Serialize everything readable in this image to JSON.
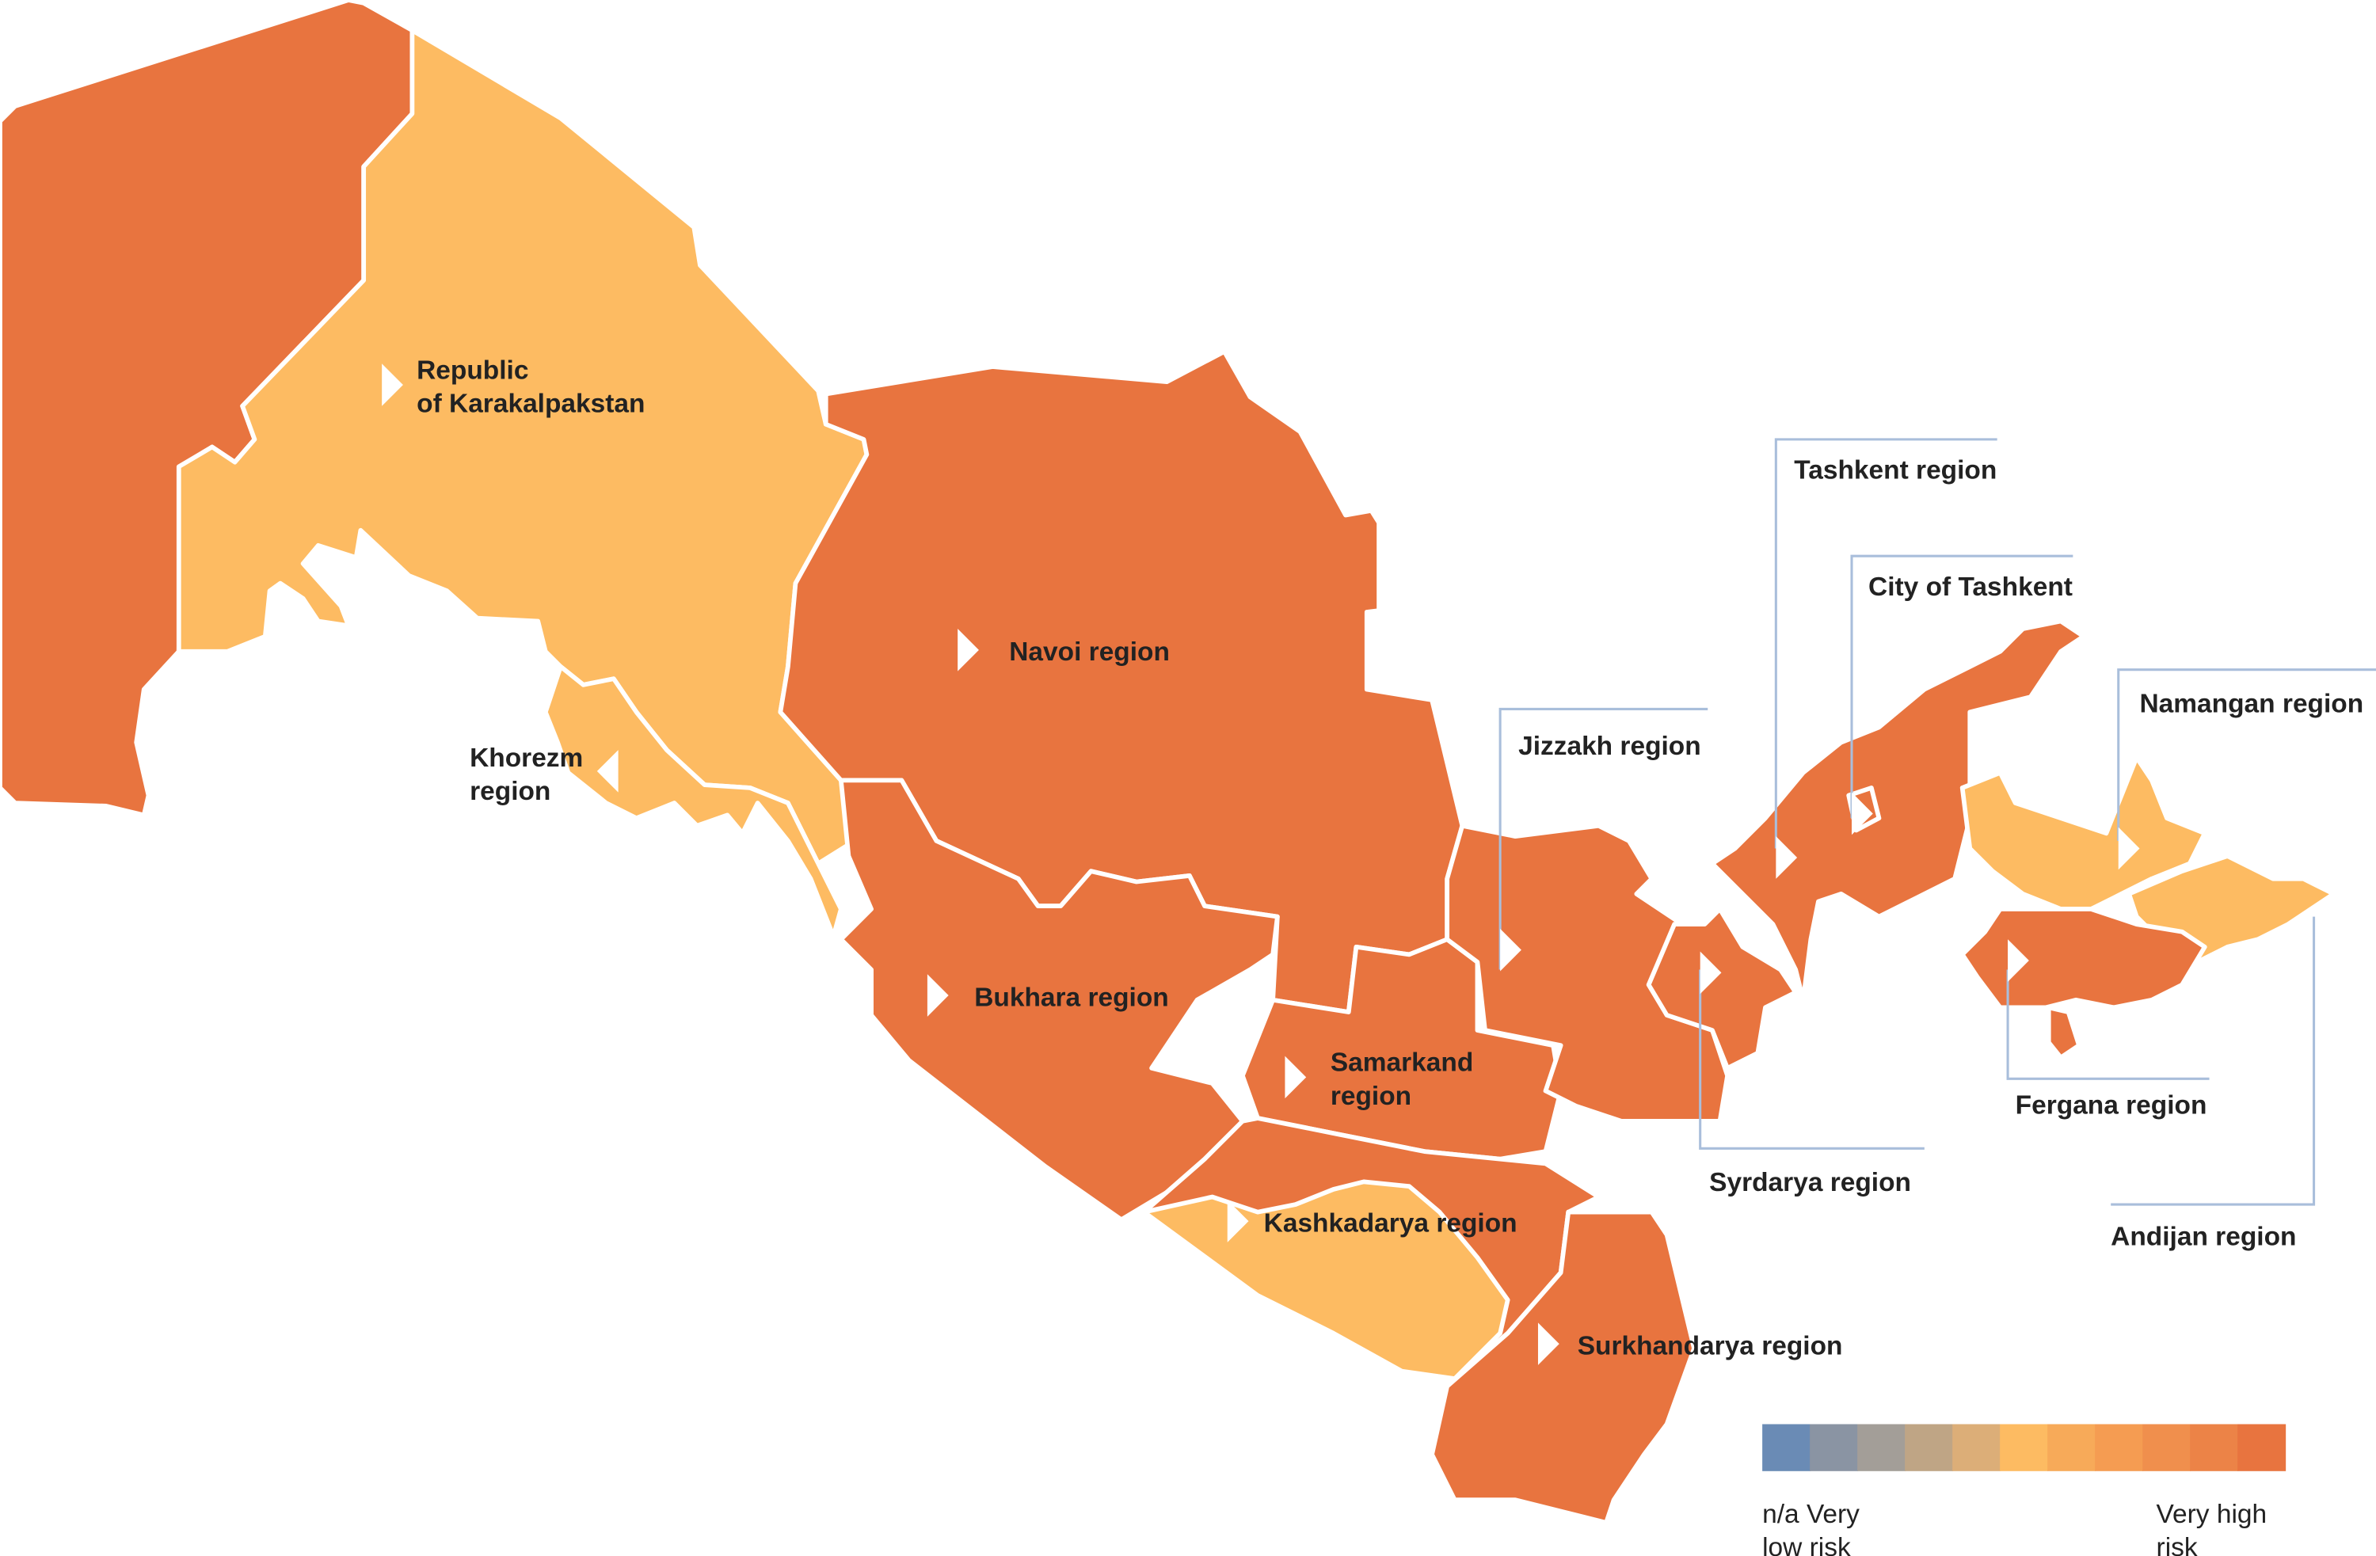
{
  "colors": {
    "very_high": "#e8743f",
    "high": "#fdbb62",
    "border": "#ffffff",
    "callout": "#a9bedb"
  },
  "regions": {
    "karakalpakstan": {
      "label": [
        "Republic",
        "of Karakalpakstan"
      ],
      "risk": "high"
    },
    "navoi": {
      "label": [
        "Navoi region"
      ],
      "risk": "very high"
    },
    "khorezm": {
      "label": [
        "Khorezm",
        "region"
      ],
      "risk": "high"
    },
    "bukhara": {
      "label": [
        "Bukhara region"
      ],
      "risk": "very high"
    },
    "samarkand": {
      "label": [
        "Samarkand",
        "region"
      ],
      "risk": "very high"
    },
    "kashkadarya": {
      "label": [
        "Kashkadarya region"
      ],
      "risk": "very high / high"
    },
    "surkhandarya": {
      "label": [
        "Surkhandarya region"
      ],
      "risk": "very high"
    },
    "jizzakh": {
      "label": [
        "Jizzakh region"
      ],
      "risk": "very high"
    },
    "tashkent_region": {
      "label": [
        "Tashkent region"
      ],
      "risk": "very high"
    },
    "tashkent_city": {
      "label": [
        "City of Tashkent"
      ],
      "risk": "very high"
    },
    "namangan": {
      "label": [
        "Namangan region"
      ],
      "risk": "high"
    },
    "syrdarya": {
      "label": [
        "Syrdarya region"
      ],
      "risk": "very high"
    },
    "fergana": {
      "label": [
        "Fergana region"
      ],
      "risk": "very high"
    },
    "andijan": {
      "label": [
        "Andijan region"
      ],
      "risk": "high"
    }
  },
  "legend": {
    "colors": [
      "#6a8bb5",
      "#8a94a3",
      "#a39e98",
      "#bfa585",
      "#dcae78",
      "#fdbb62",
      "#f7aa59",
      "#f59c52",
      "#f08f4d",
      "#ec8347",
      "#e8743f"
    ],
    "left_label": [
      "n/a Very",
      "low risk"
    ],
    "right_label": [
      "Very high",
      "risk"
    ]
  }
}
